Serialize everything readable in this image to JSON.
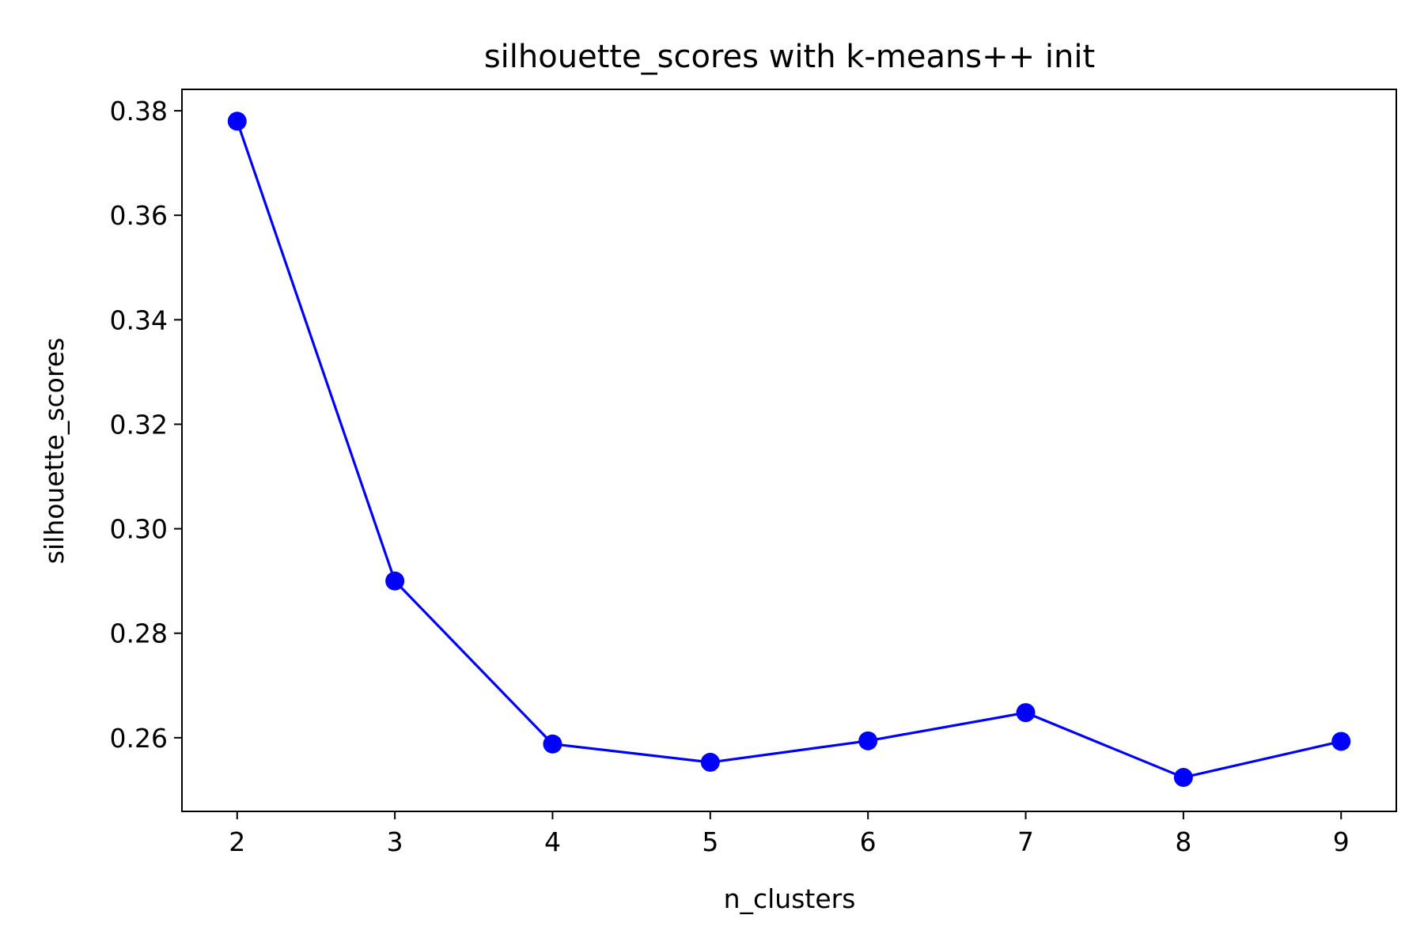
{
  "chart_data": {
    "type": "line",
    "title": "silhouette_scores with k-means++ init",
    "xlabel": "n_clusters",
    "ylabel": "silhouette_scores",
    "x": [
      2,
      3,
      4,
      5,
      6,
      7,
      8,
      9
    ],
    "series": [
      {
        "values": [
          0.378,
          0.29,
          0.2588,
          0.2553,
          0.2594,
          0.2648,
          0.2524,
          0.2593
        ]
      }
    ],
    "xticks": [
      "2",
      "3",
      "4",
      "5",
      "6",
      "7",
      "8",
      "9"
    ],
    "yticks": [
      "0.26",
      "0.28",
      "0.30",
      "0.32",
      "0.34",
      "0.36",
      "0.38"
    ],
    "xlim": [
      1.65,
      9.35
    ],
    "ylim": [
      0.2459,
      0.3841
    ],
    "grid": false,
    "colors": {
      "line": "#0000ff",
      "marker": "#0000ff",
      "axes": "#000000",
      "background": "#ffffff"
    }
  }
}
